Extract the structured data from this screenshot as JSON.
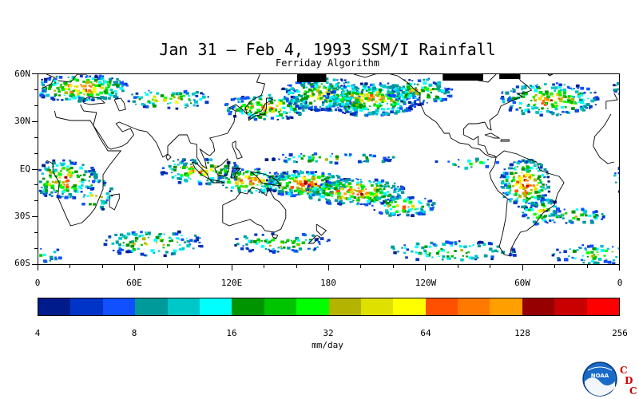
{
  "title": "Jan 31 – Feb 4, 1993 SSM/I Rainfall",
  "subtitle": "Ferriday Algorithm",
  "map": {
    "projection": "equirectangular",
    "lon_range": [
      0,
      360
    ],
    "lat_range": [
      -60,
      60
    ],
    "lat_labels": [
      "60N",
      "30N",
      "EQ",
      "30S",
      "60S"
    ],
    "lon_labels": [
      "0",
      "60E",
      "120E",
      "180",
      "120W",
      "60W",
      "0"
    ],
    "land_outline_color": "#000000",
    "ice_color": "#000000"
  },
  "colorbar": {
    "units": "mm/day",
    "tick_labels": [
      "4",
      "8",
      "16",
      "32",
      "64",
      "128",
      "256"
    ],
    "colors": [
      "#001c8c",
      "#0034c8",
      "#1050ff",
      "#009a9a",
      "#00c8c8",
      "#00ffff",
      "#009400",
      "#00c400",
      "#00ff00",
      "#b4b400",
      "#e0e000",
      "#ffff00",
      "#ff5000",
      "#ff7800",
      "#ffa000",
      "#960000",
      "#c80000",
      "#ff0000"
    ]
  },
  "logo": {
    "name": "NOAA",
    "letters": [
      "C",
      "D",
      "C"
    ],
    "letter_color": "#d00000"
  }
}
